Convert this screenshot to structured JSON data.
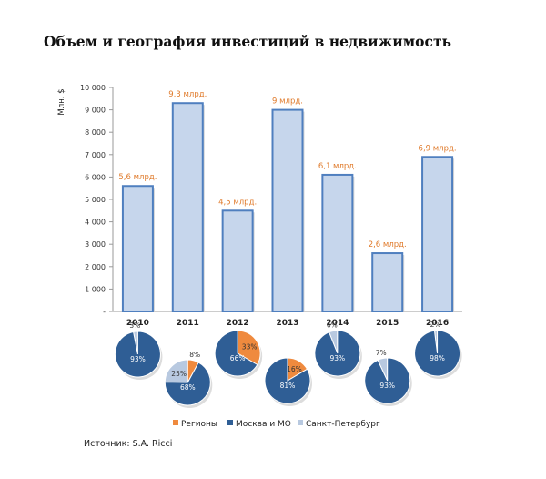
{
  "title": "Объем и география инвестиций в недвижимость",
  "source": "Источник:  S.A. Ricci",
  "chart_data": [
    {
      "type": "bar",
      "ylabel": "Млн. $",
      "ylim": [
        0,
        10000
      ],
      "ytick_labels": [
        "-",
        "1 000",
        "2 000",
        "3 000",
        "4 000",
        "5 000",
        "6 000",
        "7 000",
        "8 000",
        "9 000",
        "10 000"
      ],
      "categories": [
        "2010",
        "2011",
        "2012",
        "2013",
        "2014",
        "2015",
        "2016"
      ],
      "values": [
        5600,
        9300,
        4500,
        9000,
        6100,
        2600,
        6900
      ],
      "data_labels": [
        "5,6 млрд.",
        "9,3 млрд.",
        "4,5 млрд.",
        "9 млрд.",
        "6,1 млрд.",
        "2,6 млрд.",
        "6,9 млрд."
      ],
      "colors": {
        "bar_fill": "#c6d6ec",
        "bar_stroke": "#4f7fbf",
        "label": "#e07b2c"
      }
    },
    {
      "type": "pie",
      "legend": [
        "Регионы",
        "Москва и МО",
        "Санкт-Петербург"
      ],
      "legend_position": "bottom",
      "colors": [
        "#ef8a3e",
        "#2f5e95",
        "#b8c9e0"
      ],
      "pies": [
        {
          "year": "2010",
          "values": [
            0,
            93,
            3
          ],
          "labels": [
            "",
            "93%",
            "3%"
          ]
        },
        {
          "year": "2011",
          "values": [
            8,
            68,
            25
          ],
          "labels": [
            "8%",
            "68%",
            "25%"
          ]
        },
        {
          "year": "2012",
          "values": [
            33,
            66,
            0
          ],
          "labels": [
            "33%",
            "66%",
            ""
          ]
        },
        {
          "year": "2013",
          "values": [
            16,
            81,
            0
          ],
          "labels": [
            "16%",
            "81%",
            ""
          ]
        },
        {
          "year": "2014",
          "values": [
            0,
            93,
            6
          ],
          "labels": [
            "",
            "93%",
            "6%"
          ]
        },
        {
          "year": "2015",
          "values": [
            0,
            93,
            7
          ],
          "labels": [
            "",
            "93%",
            "7%"
          ]
        },
        {
          "year": "2016",
          "values": [
            0,
            98,
            2
          ],
          "labels": [
            "",
            "98%",
            "2%"
          ]
        }
      ]
    }
  ]
}
